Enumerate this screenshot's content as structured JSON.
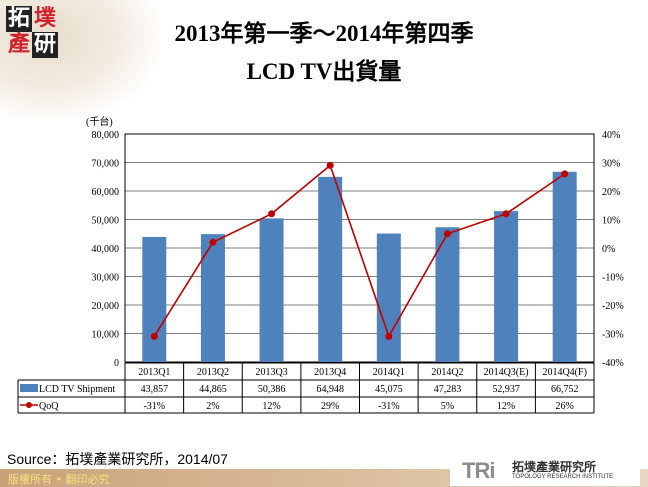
{
  "header": {
    "logo_chars": [
      "拓",
      "墣",
      "產",
      "研"
    ],
    "title_line1": "2013年第一季～2014年第四季",
    "title_line2": "LCD TV出貨量"
  },
  "chart_data": {
    "type": "bar+line",
    "title": "2013年第一季～2014年第四季 LCD TV出貨量",
    "unit_label": "(千台)",
    "categories": [
      "2013Q1",
      "2013Q2",
      "2013Q3",
      "2013Q4",
      "2014Q1",
      "2014Q2",
      "2014Q3(E)",
      "2014Q4(F)"
    ],
    "series": [
      {
        "name": "LCD TV Shipment",
        "type": "bar",
        "axis": "left",
        "color": "#4f81bd",
        "values": [
          43857,
          44865,
          50386,
          64948,
          45075,
          47283,
          52937,
          66752
        ],
        "labels": [
          "43,857",
          "44,865",
          "50,386",
          "64,948",
          "45,075",
          "47,283",
          "52,937",
          "66,752"
        ]
      },
      {
        "name": "QoQ",
        "type": "line",
        "axis": "right",
        "color": "#c00000",
        "values": [
          -31,
          2,
          12,
          29,
          -31,
          5,
          12,
          26
        ],
        "labels": [
          "-31%",
          "2%",
          "12%",
          "29%",
          "-31%",
          "5%",
          "12%",
          "26%"
        ]
      }
    ],
    "left_axis": {
      "range": [
        0,
        80000
      ],
      "ticks": [
        "0",
        "10,000",
        "20,000",
        "30,000",
        "40,000",
        "50,000",
        "60,000",
        "70,000",
        "80,000"
      ]
    },
    "right_axis": {
      "range": [
        -40,
        40
      ],
      "ticks": [
        "-40%",
        "-30%",
        "-20%",
        "-10%",
        "0%",
        "10%",
        "20%",
        "30%",
        "40%"
      ]
    },
    "grid": true,
    "legend": "data-table"
  },
  "footer": {
    "source": "Source：拓墣產業研究所，2014/07",
    "copyright": "版權所有 • 翻印必究",
    "logo_mark": "TRi",
    "logo_cn": "拓墣產業研究所",
    "logo_en": "TOPOLOGY RESEARCH INSTITUTE"
  }
}
